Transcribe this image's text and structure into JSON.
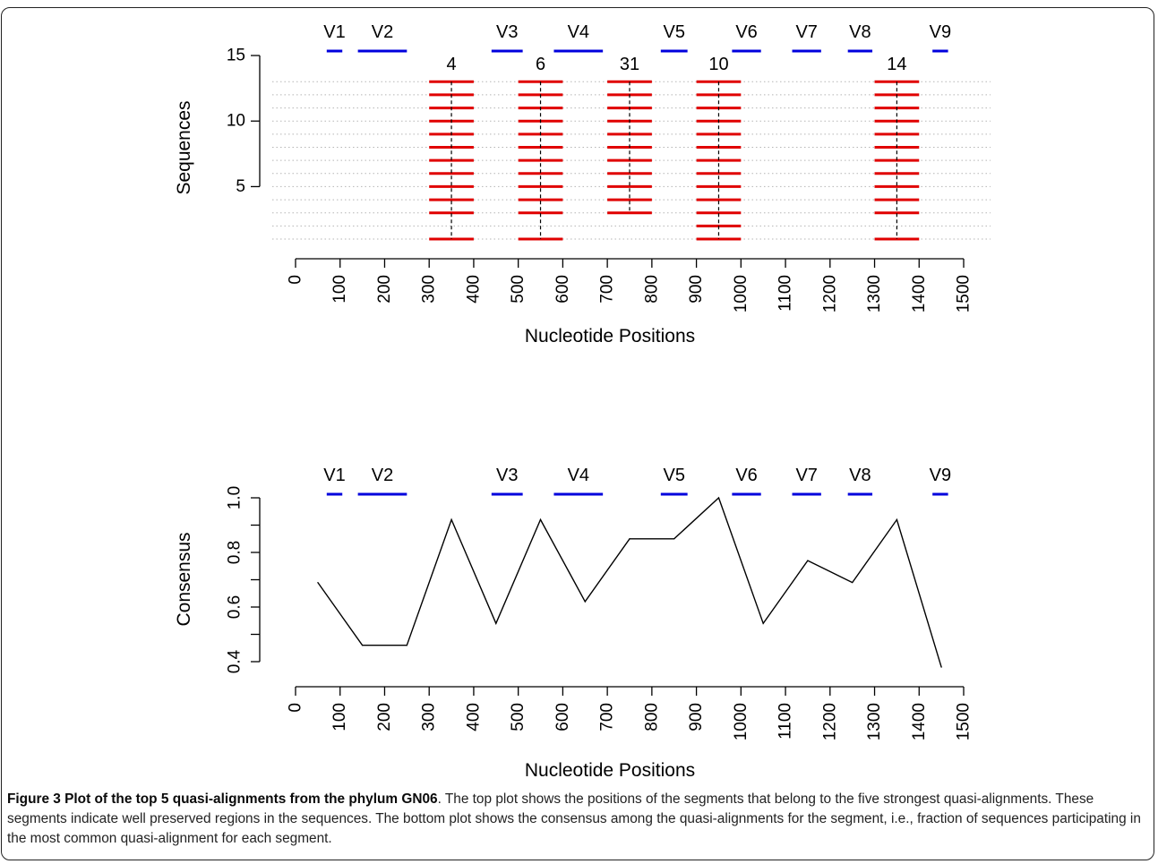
{
  "figure": {
    "caption_title": "Figure 3 Plot of the top 5 quasi-alignments from the phylum GN06",
    "caption_body": ". The top plot shows the positions of the segments that belong to the five strongest quasi-alignments. These segments indicate well preserved regions in the sequences. The bottom plot shows the consensus among the quasi-alignments for the segment, i.e., fraction of sequences participating in the most common quasi-alignment for each segment.",
    "segment_color": "#e00000",
    "region_color": "#0000dd",
    "line_color": "#000000",
    "grid_color": "#b5b5b5"
  },
  "chart_data": [
    {
      "type": "segment",
      "title": "",
      "xlabel": "Nucleotide Positions",
      "ylabel": "Sequences",
      "xlim": [
        0,
        1500
      ],
      "ylim": [
        1,
        15
      ],
      "x_ticks": [
        0,
        100,
        200,
        300,
        400,
        500,
        600,
        700,
        800,
        900,
        1000,
        1100,
        1200,
        1300,
        1400,
        1500
      ],
      "y_ticks": [
        5,
        10,
        15
      ],
      "grid": "dotted horizontal at each sequence",
      "variable_regions": [
        {
          "name": "V1",
          "start": 70,
          "end": 105
        },
        {
          "name": "V2",
          "start": 140,
          "end": 250
        },
        {
          "name": "V3",
          "start": 440,
          "end": 510
        },
        {
          "name": "V4",
          "start": 580,
          "end": 690
        },
        {
          "name": "V5",
          "start": 820,
          "end": 880
        },
        {
          "name": "V6",
          "start": 980,
          "end": 1045
        },
        {
          "name": "V7",
          "start": 1115,
          "end": 1180
        },
        {
          "name": "V8",
          "start": 1240,
          "end": 1295
        },
        {
          "name": "V9",
          "start": 1430,
          "end": 1465
        }
      ],
      "alignments": [
        {
          "label": "4",
          "start": 300,
          "end": 400,
          "center": 350,
          "sequences": [
            1,
            3,
            4,
            5,
            6,
            7,
            8,
            9,
            10,
            11,
            12,
            13
          ]
        },
        {
          "label": "6",
          "start": 500,
          "end": 600,
          "center": 550,
          "sequences": [
            1,
            3,
            4,
            5,
            6,
            7,
            8,
            9,
            10,
            11,
            12,
            13
          ]
        },
        {
          "label": "31",
          "start": 700,
          "end": 800,
          "center": 750,
          "sequences": [
            3,
            4,
            5,
            6,
            7,
            8,
            9,
            10,
            11,
            12,
            13
          ]
        },
        {
          "label": "10",
          "start": 900,
          "end": 1000,
          "center": 950,
          "sequences": [
            1,
            2,
            3,
            4,
            5,
            6,
            7,
            8,
            9,
            10,
            11,
            12,
            13
          ]
        },
        {
          "label": "14",
          "start": 1300,
          "end": 1400,
          "center": 1350,
          "sequences": [
            1,
            3,
            4,
            5,
            6,
            7,
            8,
            9,
            10,
            11,
            12,
            13
          ]
        }
      ]
    },
    {
      "type": "line",
      "title": "",
      "xlabel": "Nucleotide Positions",
      "ylabel": "Consensus",
      "xlim": [
        0,
        1500
      ],
      "ylim": [
        0.4,
        1.0
      ],
      "x_ticks": [
        0,
        100,
        200,
        300,
        400,
        500,
        600,
        700,
        800,
        900,
        1000,
        1100,
        1200,
        1300,
        1400,
        1500
      ],
      "y_ticks": [
        0.4,
        0.6,
        0.8,
        1.0
      ],
      "y_tick_labels": [
        "0.4",
        "0.6",
        "0.8",
        "1.0"
      ],
      "grid": false,
      "variable_regions": [
        {
          "name": "V1",
          "start": 70,
          "end": 105
        },
        {
          "name": "V2",
          "start": 140,
          "end": 250
        },
        {
          "name": "V3",
          "start": 440,
          "end": 510
        },
        {
          "name": "V4",
          "start": 580,
          "end": 690
        },
        {
          "name": "V5",
          "start": 820,
          "end": 880
        },
        {
          "name": "V6",
          "start": 980,
          "end": 1045
        },
        {
          "name": "V7",
          "start": 1115,
          "end": 1180
        },
        {
          "name": "V8",
          "start": 1240,
          "end": 1295
        },
        {
          "name": "V9",
          "start": 1430,
          "end": 1465
        }
      ],
      "x": [
        50,
        150,
        250,
        350,
        450,
        550,
        650,
        750,
        850,
        950,
        1050,
        1150,
        1250,
        1350,
        1450
      ],
      "y": [
        0.69,
        0.46,
        0.46,
        0.92,
        0.54,
        0.92,
        0.62,
        0.85,
        0.85,
        1.0,
        0.54,
        0.77,
        0.69,
        0.92,
        0.38
      ]
    }
  ]
}
